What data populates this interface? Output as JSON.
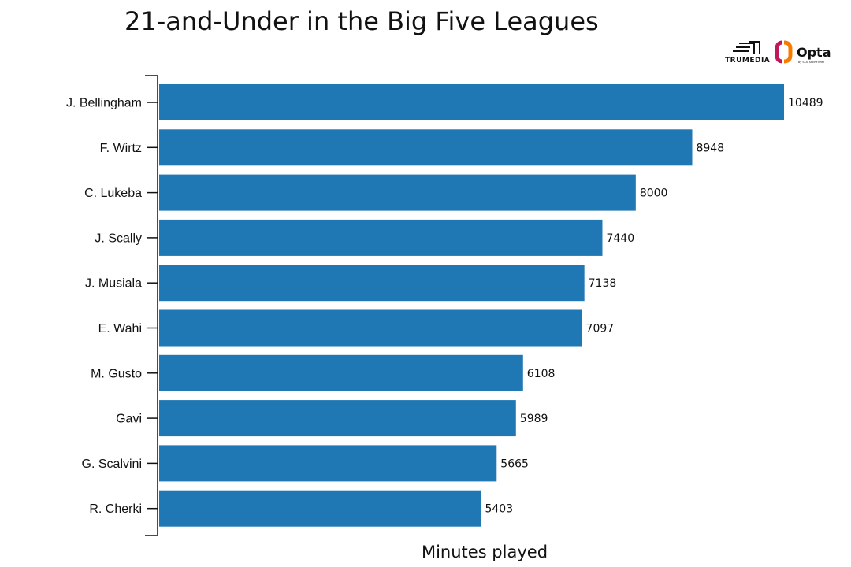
{
  "colors": {
    "bar": "#1f77b4",
    "axis": "#111111"
  },
  "logos": {
    "trumedia": "TRUMEDIA",
    "opta": "Opta",
    "opta_sub": "by STATSPERFORM"
  },
  "chart_data": {
    "type": "bar",
    "orientation": "horizontal",
    "title": "21-and-Under in the Big Five Leagues",
    "xlabel": "Minutes played",
    "ylabel": "",
    "xlim": [
      0,
      10489
    ],
    "categories": [
      "J. Bellingham",
      "F. Wirtz",
      "C. Lukeba",
      "J. Scally",
      "J. Musiala",
      "E. Wahi",
      "M. Gusto",
      "Gavi",
      "G. Scalvini",
      "R. Cherki"
    ],
    "values": [
      10489,
      8948,
      8000,
      7440,
      7138,
      7097,
      6108,
      5989,
      5665,
      5403
    ],
    "data_labels": [
      "10489",
      "8948",
      "8000",
      "7440",
      "7138",
      "7097",
      "6108",
      "5989",
      "5665",
      "5403"
    ],
    "grid": false,
    "legend": "none"
  }
}
